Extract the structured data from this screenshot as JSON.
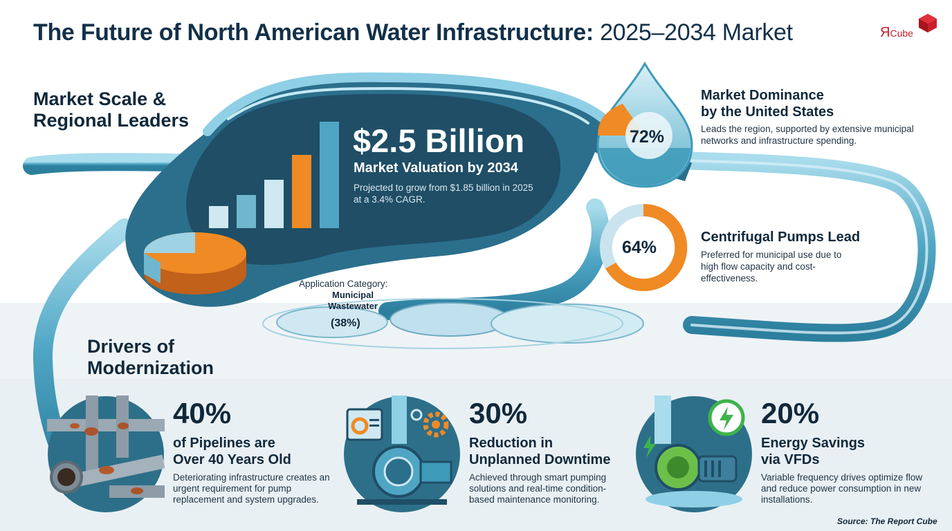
{
  "header": {
    "title_bold": "The Future of North American Water Infrastructure:",
    "title_light": "2025–2034 Market",
    "logo_letter": "Я",
    "logo_word": "Cube"
  },
  "market_section": {
    "heading_line1": "Market Scale &",
    "heading_line2": "Regional Leaders"
  },
  "valuation": {
    "value": "$2.5 Billion",
    "label": "Market Valuation by 2034",
    "description": "Projected to grow from $1.85 billion in 2025 at a 3.4% CAGR."
  },
  "us_dominance": {
    "percent": "72%",
    "percent_value": 72,
    "title_line1": "Market Dominance",
    "title_line2": "by the United States",
    "description": "Leads the region, supported by extensive municipal networks and infrastructure spending."
  },
  "centrifugal": {
    "percent": "64%",
    "percent_value": 64,
    "title": "Centrifugal Pumps Lead",
    "description": "Preferred for municipal use due to high flow capacity and cost-effectiveness."
  },
  "application": {
    "label": "Application Category:",
    "category": "Municipal Wastewater",
    "percent": "(38%)"
  },
  "drivers_section": {
    "heading_line1": "Drivers of",
    "heading_line2": "Modernization"
  },
  "drivers": [
    {
      "icon": "rusty-pipes-icon",
      "stat": "40%",
      "title_line1": "of Pipelines are",
      "title_line2": "Over 40 Years Old",
      "description": "Deteriorating infrastructure creates an urgent requirement for pump replacement and system upgrades."
    },
    {
      "icon": "smart-pump-icon",
      "stat": "30%",
      "title_line1": "Reduction in",
      "title_line2": "Unplanned Downtime",
      "description": "Achieved through smart pumping solutions and real-time condition-based maintenance monitoring."
    },
    {
      "icon": "energy-pump-icon",
      "stat": "20%",
      "title_line1": "Energy Savings",
      "title_line2": "via VFDs",
      "description": "Variable frequency drives optimize flow and reduce power consumption in new installations."
    }
  ],
  "footer": {
    "source": "Source: The Report Cube"
  },
  "colors": {
    "navy": "#10283a",
    "teal_dark": "#1f5a73",
    "teal": "#3d9ab8",
    "water_light": "#8fd0e6",
    "orange": "#f08a24",
    "logo_red": "#c8202a"
  }
}
